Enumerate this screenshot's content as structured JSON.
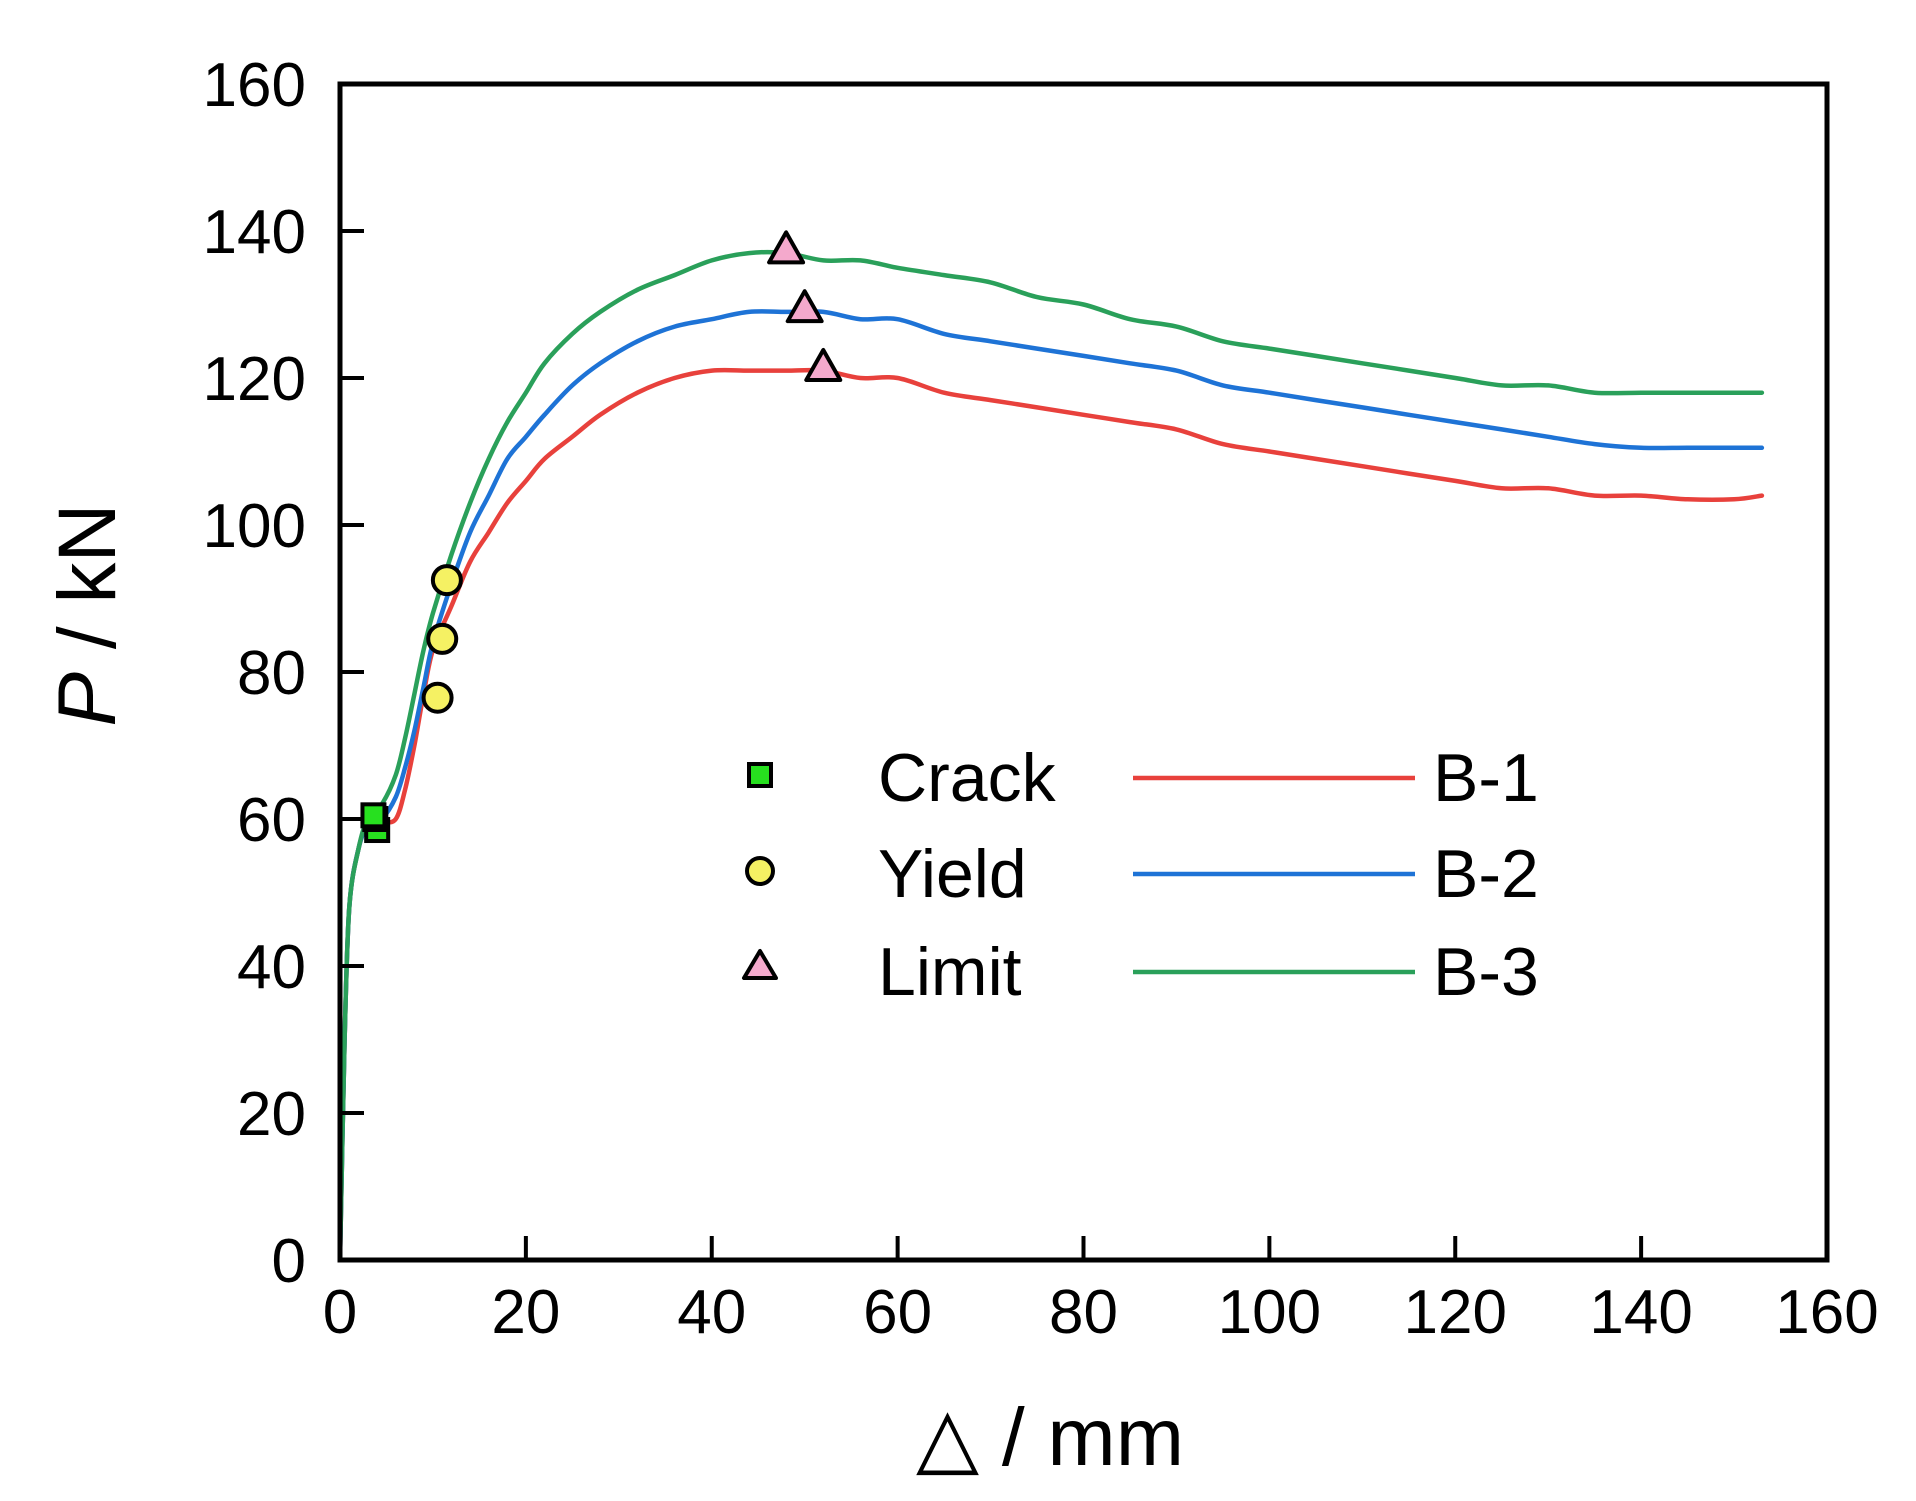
{
  "chart_data": {
    "type": "line",
    "title": "",
    "xlabel": "△ / mm",
    "ylabel_italic": "P",
    "ylabel_rest": " / kN",
    "xlim": [
      0,
      160
    ],
    "ylim": [
      0,
      160
    ],
    "xticks": [
      0,
      20,
      40,
      60,
      80,
      100,
      120,
      140,
      160
    ],
    "yticks": [
      0,
      20,
      40,
      60,
      80,
      100,
      120,
      140,
      160
    ],
    "grid": false,
    "legend_position": "center",
    "series": [
      {
        "name": "B-1",
        "color": "#e8413c",
        "points": [
          [
            0,
            0
          ],
          [
            0.5,
            30
          ],
          [
            1,
            48
          ],
          [
            2,
            56
          ],
          [
            3,
            59
          ],
          [
            4.5,
            59.5
          ],
          [
            6,
            60
          ],
          [
            7,
            64
          ],
          [
            8,
            70
          ],
          [
            9,
            77
          ],
          [
            10,
            83
          ],
          [
            12,
            89
          ],
          [
            14,
            95
          ],
          [
            16,
            99
          ],
          [
            18,
            103
          ],
          [
            20,
            106
          ],
          [
            22,
            109
          ],
          [
            25,
            112
          ],
          [
            28,
            115
          ],
          [
            32,
            118
          ],
          [
            36,
            120
          ],
          [
            40,
            121
          ],
          [
            44,
            121
          ],
          [
            48,
            121
          ],
          [
            52,
            121
          ],
          [
            56,
            120
          ],
          [
            60,
            120
          ],
          [
            65,
            118
          ],
          [
            70,
            117
          ],
          [
            75,
            116
          ],
          [
            80,
            115
          ],
          [
            85,
            114
          ],
          [
            90,
            113
          ],
          [
            95,
            111
          ],
          [
            100,
            110
          ],
          [
            105,
            109
          ],
          [
            110,
            108
          ],
          [
            115,
            107
          ],
          [
            120,
            106
          ],
          [
            125,
            105
          ],
          [
            130,
            105
          ],
          [
            135,
            104
          ],
          [
            140,
            104
          ],
          [
            145,
            103.5
          ],
          [
            150,
            103.5
          ],
          [
            153,
            104
          ]
        ]
      },
      {
        "name": "B-2",
        "color": "#1e73d6",
        "points": [
          [
            0,
            0
          ],
          [
            0.5,
            30
          ],
          [
            1,
            48
          ],
          [
            2,
            56
          ],
          [
            3,
            59
          ],
          [
            4.5,
            60
          ],
          [
            6,
            63
          ],
          [
            7,
            67
          ],
          [
            8,
            72
          ],
          [
            9,
            78
          ],
          [
            10,
            84
          ],
          [
            12,
            92
          ],
          [
            14,
            99
          ],
          [
            16,
            104
          ],
          [
            18,
            109
          ],
          [
            20,
            112
          ],
          [
            22,
            115
          ],
          [
            25,
            119
          ],
          [
            28,
            122
          ],
          [
            32,
            125
          ],
          [
            36,
            127
          ],
          [
            40,
            128
          ],
          [
            44,
            129
          ],
          [
            48,
            129
          ],
          [
            52,
            129
          ],
          [
            56,
            128
          ],
          [
            60,
            128
          ],
          [
            65,
            126
          ],
          [
            70,
            125
          ],
          [
            75,
            124
          ],
          [
            80,
            123
          ],
          [
            85,
            122
          ],
          [
            90,
            121
          ],
          [
            95,
            119
          ],
          [
            100,
            118
          ],
          [
            105,
            117
          ],
          [
            110,
            116
          ],
          [
            115,
            115
          ],
          [
            120,
            114
          ],
          [
            125,
            113
          ],
          [
            130,
            112
          ],
          [
            135,
            111
          ],
          [
            140,
            110.5
          ],
          [
            145,
            110.5
          ],
          [
            150,
            110.5
          ],
          [
            153,
            110.5
          ]
        ]
      },
      {
        "name": "B-3",
        "color": "#2aa05a",
        "points": [
          [
            0,
            0
          ],
          [
            0.5,
            30
          ],
          [
            1,
            48
          ],
          [
            2,
            56
          ],
          [
            3,
            60
          ],
          [
            4.5,
            62
          ],
          [
            6,
            66
          ],
          [
            7,
            71
          ],
          [
            8,
            77
          ],
          [
            9,
            83
          ],
          [
            10,
            88
          ],
          [
            12,
            96
          ],
          [
            14,
            103
          ],
          [
            16,
            109
          ],
          [
            18,
            114
          ],
          [
            20,
            118
          ],
          [
            22,
            122
          ],
          [
            25,
            126
          ],
          [
            28,
            129
          ],
          [
            32,
            132
          ],
          [
            36,
            134
          ],
          [
            40,
            136
          ],
          [
            44,
            137
          ],
          [
            48,
            137
          ],
          [
            52,
            136
          ],
          [
            56,
            136
          ],
          [
            60,
            135
          ],
          [
            65,
            134
          ],
          [
            70,
            133
          ],
          [
            75,
            131
          ],
          [
            80,
            130
          ],
          [
            85,
            128
          ],
          [
            90,
            127
          ],
          [
            95,
            125
          ],
          [
            100,
            124
          ],
          [
            105,
            123
          ],
          [
            110,
            122
          ],
          [
            115,
            121
          ],
          [
            120,
            120
          ],
          [
            125,
            119
          ],
          [
            130,
            119
          ],
          [
            135,
            118
          ],
          [
            140,
            118
          ],
          [
            145,
            118
          ],
          [
            150,
            118
          ],
          [
            153,
            118
          ]
        ]
      }
    ],
    "markers": [
      {
        "name": "Crack",
        "shape": "square",
        "fill": "#27e01f",
        "points": [
          [
            4,
            58.5
          ],
          [
            3.8,
            60
          ],
          [
            3.6,
            60.5
          ]
        ]
      },
      {
        "name": "Yield",
        "shape": "circle",
        "fill": "#f5f163",
        "points": [
          [
            10.5,
            76.5
          ],
          [
            11,
            84.5
          ],
          [
            11.5,
            92.5
          ]
        ]
      },
      {
        "name": "Limit",
        "shape": "triangle",
        "fill": "#f4a9cc",
        "points": [
          [
            52,
            121.5
          ],
          [
            50,
            129.5
          ],
          [
            48,
            137.5
          ]
        ]
      }
    ]
  }
}
